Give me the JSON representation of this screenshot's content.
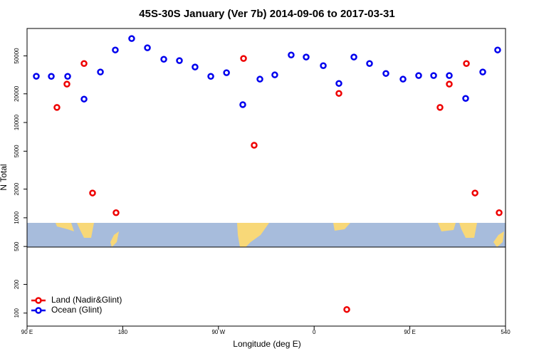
{
  "chart_data": {
    "type": "scatter",
    "title": "45S-30S January (Ver 7b)   2014-09-06 to 2017-03-31",
    "x_label": "Longitude (deg E)",
    "y_label": "N Total",
    "log_y": true,
    "legend": "bottom-left",
    "xlim": [
      90,
      540
    ],
    "xticks": [
      {
        "value": 90,
        "label": "90 E"
      },
      180,
      {
        "value": 270,
        "label": "90 W"
      },
      {
        "value": 360,
        "label": "0"
      },
      {
        "value": 450,
        "label": "90 E"
      },
      540
    ],
    "ylim": [
      73,
      97000
    ],
    "yticks": [
      100,
      200,
      500,
      1000,
      2000,
      5000,
      10000,
      20000,
      50000
    ],
    "series": [
      {
        "name": "Land (Nadir&Glint)",
        "color": "#ee0000",
        "x": [
          118.1,
          127.5,
          143.6,
          151.6,
          173.7,
          293.6,
          303.6,
          383.3,
          390.7,
          478.4,
          487.1,
          503.2,
          511.3,
          534
        ],
        "values": [
          14400,
          25300,
          41600,
          1820,
          1130,
          47000,
          5770,
          20200,
          109,
          14400,
          25300,
          41600,
          1820,
          1130
        ]
      },
      {
        "name": "Ocean (Glint)",
        "color": "#0000ee",
        "x": [
          98.7,
          112.8,
          128.2,
          143.6,
          159,
          173,
          188.4,
          203.2,
          218.6,
          233.3,
          248,
          262.8,
          277.6,
          292.9,
          309,
          323,
          338.4,
          352.5,
          368.6,
          383.3,
          397.4,
          412.1,
          427.5,
          443.6,
          458.3,
          472.4,
          487.1,
          502.5,
          518.6,
          532.6
        ],
        "values": [
          30550,
          30500,
          30500,
          17600,
          33900,
          57700,
          76000,
          60800,
          46100,
          44600,
          38200,
          30500,
          33300,
          15400,
          28500,
          31600,
          51100,
          48600,
          39500,
          25700,
          48600,
          41600,
          32700,
          28500,
          31100,
          31100,
          31100,
          17900,
          33900,
          57700
        ]
      }
    ]
  }
}
